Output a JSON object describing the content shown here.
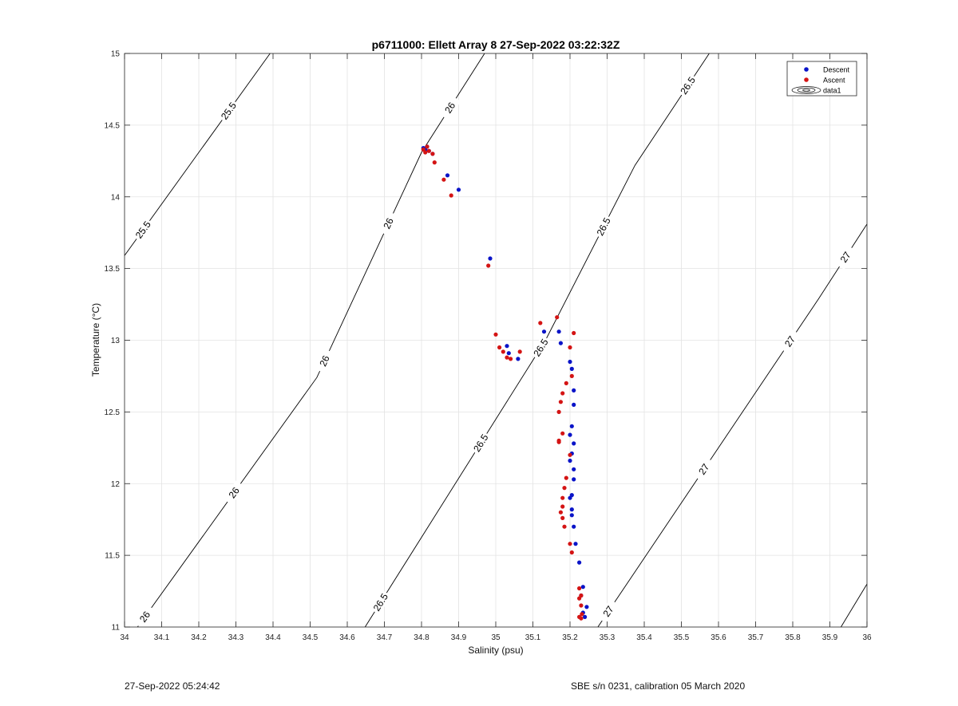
{
  "footer": {
    "left": "27-Sep-2022 05:24:42",
    "right": "SBE s/n 0231, calibration 05 March 2020"
  },
  "colors": {
    "descent": "#0a14c8",
    "ascent": "#d41414",
    "contour": "#000000",
    "grid": "#e3e3e3"
  },
  "chart_data": {
    "type": "scatter",
    "title": "p6711000: Ellett Array 8 27-Sep-2022 03:22:32Z",
    "xlabel": "Salinity (psu)",
    "ylabel": "Temperature (°C)",
    "xlim": [
      34,
      36
    ],
    "ylim": [
      11,
      15
    ],
    "xticks": [
      "34",
      "34.1",
      "34.2",
      "34.3",
      "34.4",
      "34.5",
      "34.6",
      "34.7",
      "34.8",
      "34.9",
      "35",
      "35.1",
      "35.2",
      "35.3",
      "35.4",
      "35.5",
      "35.6",
      "35.7",
      "35.8",
      "35.9",
      "36"
    ],
    "yticks": [
      "11",
      "11.5",
      "12",
      "12.5",
      "13",
      "13.5",
      "14",
      "14.5",
      "15"
    ],
    "grid": true,
    "legend": {
      "placement": "top-right",
      "entries": [
        "Descent",
        "Ascent",
        "data1"
      ]
    },
    "contours": [
      {
        "label": "25.5",
        "points": [
          [
            34,
            13.59
          ],
          [
            34.392,
            15
          ]
        ],
        "label_positions": [
          [
            34.05,
            13.77
          ],
          [
            34.28,
            14.6
          ]
        ]
      },
      {
        "label": "26",
        "points": [
          [
            34.035,
            11
          ],
          [
            34.518,
            12.74
          ],
          [
            34.8,
            14.31
          ],
          [
            34.97,
            15
          ]
        ],
        "label_positions": [
          [
            34.05,
            11.08
          ],
          [
            34.25,
            12.02
          ],
          [
            34.46,
            12.95
          ],
          [
            34.69,
            13.84
          ],
          [
            34.92,
            14.55
          ]
        ]
      },
      {
        "label": "26.5",
        "points": [
          [
            34.648,
            11
          ],
          [
            35.134,
            13
          ],
          [
            35.375,
            14.22
          ],
          [
            35.575,
            15
          ]
        ],
        "label_positions": [
          [
            34.71,
            11.14
          ],
          [
            34.98,
            12.25
          ],
          [
            35.12,
            12.95
          ],
          [
            35.36,
            13.7
          ],
          [
            35.62,
            14.6
          ]
        ]
      },
      {
        "label": "27",
        "points": [
          [
            35.275,
            11
          ],
          [
            35.87,
            13.29
          ],
          [
            36,
            13.81
          ]
        ],
        "label_positions": [
          [
            35.32,
            11.08
          ],
          [
            35.63,
            11.98
          ],
          [
            35.96,
            12.7
          ],
          [
            35.93,
            13.6
          ]
        ]
      },
      {
        "label": "",
        "points": [
          [
            35.93,
            11
          ],
          [
            36,
            11.3
          ]
        ],
        "label_positions": []
      }
    ],
    "series": [
      {
        "name": "Descent",
        "x": [
          34.805,
          34.81,
          34.815,
          34.82,
          34.83,
          34.87,
          34.9,
          34.985,
          35.03,
          35.035,
          35.06,
          35.13,
          35.17,
          35.175,
          35.2,
          35.205,
          35.21,
          35.21,
          35.205,
          35.2,
          35.21,
          35.205,
          35.2,
          35.21,
          35.21,
          35.205,
          35.2,
          35.205,
          35.205,
          35.21,
          35.215,
          35.225,
          35.235,
          35.245,
          35.23,
          35.235,
          35.24
        ],
        "y": [
          14.34,
          14.33,
          14.35,
          14.32,
          14.3,
          14.15,
          14.05,
          13.57,
          12.96,
          12.91,
          12.87,
          13.06,
          13.06,
          12.98,
          12.85,
          12.8,
          12.65,
          12.55,
          12.4,
          12.34,
          12.28,
          12.21,
          12.16,
          12.1,
          12.03,
          11.92,
          11.9,
          11.82,
          11.78,
          11.7,
          11.58,
          11.45,
          11.28,
          11.14,
          11.22,
          11.1,
          11.07
        ]
      },
      {
        "name": "Ascent",
        "x": [
          34.805,
          34.815,
          34.81,
          34.82,
          34.83,
          34.835,
          34.86,
          34.88,
          34.98,
          35.0,
          35.01,
          35.02,
          35.03,
          35.04,
          35.065,
          35.12,
          35.165,
          35.21,
          35.2,
          35.205,
          35.19,
          35.18,
          35.175,
          35.17,
          35.18,
          35.17,
          35.17,
          35.2,
          35.19,
          35.185,
          35.18,
          35.18,
          35.175,
          35.18,
          35.185,
          35.2,
          35.205,
          35.225,
          35.23,
          35.225,
          35.23,
          35.232,
          35.225,
          35.23
        ],
        "y": [
          14.33,
          14.35,
          14.31,
          14.32,
          14.3,
          14.24,
          14.12,
          14.01,
          13.52,
          13.04,
          12.95,
          12.92,
          12.88,
          12.87,
          12.92,
          13.12,
          13.16,
          13.05,
          12.95,
          12.75,
          12.7,
          12.63,
          12.57,
          12.5,
          12.35,
          12.3,
          12.29,
          12.2,
          12.04,
          11.97,
          11.9,
          11.84,
          11.8,
          11.76,
          11.7,
          11.58,
          11.52,
          11.27,
          11.22,
          11.2,
          11.15,
          11.09,
          11.07,
          11.06
        ]
      }
    ]
  }
}
